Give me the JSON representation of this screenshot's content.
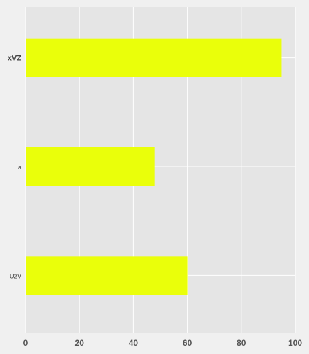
{
  "chart_data": {
    "type": "bar",
    "orientation": "horizontal",
    "categories": [
      "xVZ",
      "a",
      "UzV"
    ],
    "values": [
      95,
      48,
      60
    ],
    "xlim": [
      0,
      100
    ],
    "xticks": [
      0,
      20,
      40,
      60,
      80,
      100
    ],
    "grid": true,
    "title": "",
    "xlabel": "",
    "ylabel": "",
    "colors": {
      "bar": "#eaff0a",
      "plot_background": "#e5e5e5",
      "page_background": "#f0f0f0",
      "grid": "#ffffff"
    }
  }
}
